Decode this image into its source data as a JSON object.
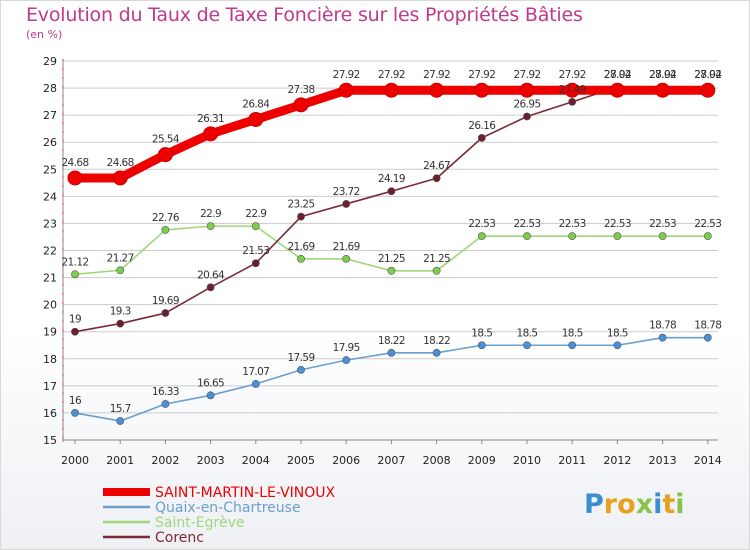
{
  "title": "Evolution du Taux de Taxe Foncière sur les Propriétés Bâties",
  "unit_label": "(en %)",
  "logo": {
    "text": "Proxiti",
    "letters": [
      {
        "ch": "P",
        "color": "#3a8ed0"
      },
      {
        "ch": "r",
        "color": "#e8a020"
      },
      {
        "ch": "o",
        "color": "#e8a020"
      },
      {
        "ch": "x",
        "color": "#8bc34a"
      },
      {
        "ch": "i",
        "color": "#3a8ed0"
      },
      {
        "ch": "t",
        "color": "#e8a020"
      },
      {
        "ch": "i",
        "color": "#8bc34a"
      }
    ]
  },
  "colors": {
    "title": "#c0398a",
    "grid": "#cccccc",
    "axis_dash": "#e0204a"
  },
  "chart_data": {
    "type": "line",
    "title": "Evolution du Taux de Taxe Foncière sur les Propriétés Bâties",
    "ylabel": "(en %)",
    "xlabel": "",
    "categories": [
      "2000",
      "2001",
      "2002",
      "2003",
      "2004",
      "2005",
      "2006",
      "2007",
      "2008",
      "2009",
      "2010",
      "2011",
      "2012",
      "2013",
      "2014"
    ],
    "ylim": [
      15,
      29
    ],
    "yticks": [
      15,
      16,
      17,
      18,
      19,
      20,
      21,
      22,
      23,
      24,
      25,
      26,
      27,
      28,
      29
    ],
    "grid": "horizontal",
    "legend_position": "bottom-left",
    "series": [
      {
        "name": "SAINT-MARTIN-LE-VINOUX",
        "color": "#ee0000",
        "markerColor": "#ee0000",
        "bold": true,
        "values": [
          24.68,
          24.68,
          25.54,
          26.31,
          26.84,
          27.38,
          27.92,
          27.92,
          27.92,
          27.92,
          27.92,
          27.92,
          27.92,
          27.92,
          27.92
        ],
        "labels": [
          "24.68",
          "24.68",
          "25.54",
          "26.31",
          "26.84",
          "27.38",
          "27.92",
          "27.92",
          "27.92",
          "27.92",
          "27.92",
          "27.92",
          "27.92",
          "27.92",
          "27.92"
        ]
      },
      {
        "name": "Quaix-en-Chartreuse",
        "color": "#6aa0cc",
        "markerColor": "#4a90d9",
        "bold": false,
        "values": [
          16,
          15.7,
          16.33,
          16.65,
          17.07,
          17.59,
          17.95,
          18.22,
          18.22,
          18.5,
          18.5,
          18.5,
          18.5,
          18.78,
          18.78
        ],
        "labels": [
          "16",
          "15.7",
          "16.33",
          "16.65",
          "17.07",
          "17.59",
          "17.95",
          "18.22",
          "18.22",
          "18.5",
          "18.5",
          "18.5",
          "18.5",
          "18.78",
          "18.78"
        ]
      },
      {
        "name": "Saint-Egrève",
        "color": "#9ed77a",
        "markerColor": "#7ccf4a",
        "bold": false,
        "values": [
          21.12,
          21.27,
          22.76,
          22.9,
          22.9,
          21.69,
          21.69,
          21.25,
          21.25,
          22.53,
          22.53,
          22.53,
          22.53,
          22.53,
          22.53
        ],
        "labels": [
          "21.12",
          "21.27",
          "22.76",
          "22.9",
          "22.9",
          "21.69",
          "21.69",
          "21.25",
          "21.25",
          "22.53",
          "22.53",
          "22.53",
          "22.53",
          "22.53",
          "22.53"
        ]
      },
      {
        "name": "Corenc",
        "color": "#7a2a36",
        "markerColor": "#6b1e2c",
        "bold": false,
        "values": [
          19,
          19.3,
          19.69,
          20.64,
          21.53,
          23.25,
          23.72,
          24.19,
          24.67,
          26.16,
          26.95,
          27.49,
          28.04,
          28.04,
          28.04
        ],
        "labels": [
          "19",
          "19.3",
          "19.69",
          "20.64",
          "21.53",
          "23.25",
          "23.72",
          "24.19",
          "24.67",
          "26.16",
          "26.95",
          "27.49",
          "28.04",
          "28.04",
          "28.04"
        ]
      }
    ]
  }
}
